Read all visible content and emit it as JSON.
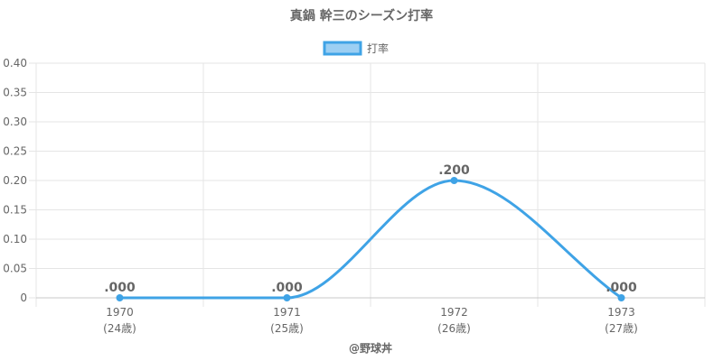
{
  "chart_data": {
    "type": "line",
    "title": "真鍋 幹三のシーズン打率",
    "legend": {
      "label": "打率",
      "position": "top"
    },
    "categories": [
      "1970",
      "1971",
      "1972",
      "1973"
    ],
    "category_sublabels": [
      "(24歳)",
      "(25歳)",
      "(26歳)",
      "(27歳)"
    ],
    "series": [
      {
        "name": "打率",
        "values": [
          0,
          0,
          0.2,
          0
        ],
        "data_labels": [
          ".000",
          ".000",
          ".200",
          ".000"
        ]
      }
    ],
    "ylim": [
      0,
      0.4
    ],
    "y_ticks": [
      {
        "value": 0.4,
        "label": "0.40"
      },
      {
        "value": 0.35,
        "label": "0.35"
      },
      {
        "value": 0.3,
        "label": "0.30"
      },
      {
        "value": 0.25,
        "label": "0.25"
      },
      {
        "value": 0.2,
        "label": "0.20"
      },
      {
        "value": 0.15,
        "label": "0.15"
      },
      {
        "value": 0.1,
        "label": "0.10"
      },
      {
        "value": 0.05,
        "label": "0.05"
      },
      {
        "value": 0,
        "label": "0"
      }
    ],
    "grid": true,
    "xlabel": "",
    "ylabel": "",
    "colors": {
      "line": "#3fa3e6",
      "fill": "#9ccff3",
      "grid": "#e5e5e5",
      "text": "#666666"
    }
  },
  "footer": {
    "credit": "@野球丼"
  }
}
